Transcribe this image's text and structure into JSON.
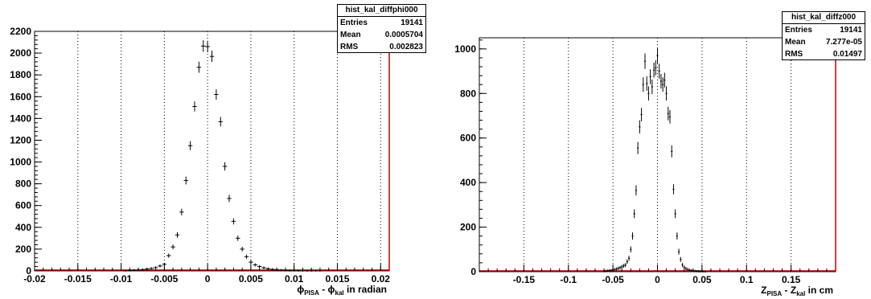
{
  "chart_data": [
    {
      "type": "histogram",
      "title": "",
      "xlabel": "ϕ_PISA - ϕ_kal in radian",
      "xlabel_parts": {
        "a": "ϕ",
        "a_sub": "PISA",
        "sep": " - ",
        "b": "ϕ",
        "b_sub": "kal",
        "tail": " in radian"
      },
      "xlim": [
        -0.02,
        0.021
      ],
      "ylim": [
        0,
        2200
      ],
      "xticks": [
        -0.02,
        -0.015,
        -0.01,
        -0.005,
        0,
        0.005,
        0.01,
        0.015,
        0.02
      ],
      "xtick_labels": [
        "-0.02",
        "-0.015",
        "-0.01",
        "-0.005",
        "0",
        "0.005",
        "0.01",
        "0.015",
        "0.02"
      ],
      "yticks": [
        0,
        200,
        400,
        600,
        800,
        1000,
        1200,
        1400,
        1600,
        1800,
        2000,
        2200
      ],
      "ytick_labels": [
        "0",
        "200",
        "400",
        "600",
        "800",
        "1000",
        "1200",
        "1400",
        "1600",
        "1800",
        "2000",
        "2200"
      ],
      "grid": "vertical dotted",
      "bin_width": 0.0005,
      "x": [
        -0.0095,
        -0.009,
        -0.0085,
        -0.008,
        -0.0075,
        -0.007,
        -0.0065,
        -0.006,
        -0.0055,
        -0.005,
        -0.0045,
        -0.004,
        -0.0035,
        -0.003,
        -0.0025,
        -0.002,
        -0.0015,
        -0.001,
        -0.0005,
        0.0,
        0.0005,
        0.001,
        0.0015,
        0.002,
        0.0025,
        0.003,
        0.0035,
        0.004,
        0.0045,
        0.005,
        0.0055,
        0.006,
        0.0065,
        0.007,
        0.0075,
        0.008,
        0.0085,
        0.009,
        0.0095,
        0.01,
        0.0105,
        0.011,
        0.0115,
        0.012,
        0.0125,
        0.013
      ],
      "y": [
        2,
        4,
        6,
        8,
        12,
        16,
        22,
        30,
        45,
        60,
        140,
        220,
        330,
        540,
        830,
        1150,
        1510,
        1870,
        2065,
        2060,
        1970,
        1620,
        1370,
        960,
        665,
        455,
        300,
        200,
        130,
        80,
        55,
        40,
        28,
        20,
        14,
        10,
        7,
        5,
        3,
        2,
        2,
        1,
        1,
        1,
        1,
        0
      ],
      "stats": {
        "name": "hist_kal_diffphi000",
        "entries_label": "Entries",
        "entries": "19141",
        "mean_label": "Mean",
        "mean": "0.0005704",
        "rms_label": "RMS",
        "rms": "0.002823"
      },
      "colors": {
        "frame": "#000000",
        "marker": "#000000",
        "edge": "#c00000"
      }
    },
    {
      "type": "histogram",
      "title": "",
      "xlabel": "Z_PISA - Z_kal in cm",
      "xlabel_parts": {
        "a": "Z",
        "a_sub": "PISA",
        "sep": " - ",
        "b": "Z",
        "b_sub": "kal",
        "tail": " in cm"
      },
      "xlim": [
        -0.2,
        0.2
      ],
      "ylim": [
        0,
        1050
      ],
      "xticks": [
        -0.15,
        -0.1,
        -0.05,
        0,
        0.05,
        0.1,
        0.15
      ],
      "xtick_labels": [
        "-0.15",
        "-0.1",
        "-0.05",
        "0",
        "0.05",
        "0.1",
        "0.15"
      ],
      "yticks": [
        0,
        200,
        400,
        600,
        800,
        1000
      ],
      "ytick_labels": [
        "0",
        "200",
        "400",
        "600",
        "800",
        "1000"
      ],
      "grid": "vertical dotted",
      "bin_width": 0.002,
      "x": [
        -0.06,
        -0.058,
        -0.056,
        -0.054,
        -0.052,
        -0.05,
        -0.048,
        -0.046,
        -0.044,
        -0.042,
        -0.04,
        -0.038,
        -0.036,
        -0.034,
        -0.032,
        -0.03,
        -0.028,
        -0.026,
        -0.024,
        -0.022,
        -0.02,
        -0.018,
        -0.016,
        -0.014,
        -0.012,
        -0.01,
        -0.008,
        -0.006,
        -0.004,
        -0.002,
        0.0,
        0.002,
        0.004,
        0.006,
        0.008,
        0.01,
        0.012,
        0.014,
        0.016,
        0.018,
        0.02,
        0.022,
        0.024,
        0.026,
        0.028,
        0.03,
        0.032,
        0.034,
        0.036,
        0.038,
        0.04,
        0.042,
        0.044,
        0.046,
        0.048,
        0.05,
        0.052,
        0.054
      ],
      "y": [
        2,
        3,
        4,
        5,
        6,
        8,
        10,
        12,
        15,
        18,
        22,
        26,
        30,
        45,
        60,
        100,
        160,
        260,
        365,
        555,
        650,
        705,
        840,
        945,
        845,
        800,
        875,
        830,
        905,
        915,
        970,
        900,
        855,
        840,
        860,
        800,
        710,
        695,
        540,
        370,
        260,
        160,
        90,
        55,
        30,
        20,
        14,
        10,
        7,
        5,
        4,
        3,
        2,
        2,
        1,
        1,
        1,
        0
      ],
      "stats": {
        "name": "hist_kal_diffz000",
        "entries_label": "Entries",
        "entries": "19141",
        "mean_label": "Mean",
        "mean": "7.277e-05",
        "rms_label": "RMS",
        "rms": "0.01497"
      },
      "colors": {
        "frame": "#000000",
        "marker": "#000000",
        "edge": "#c00000"
      }
    }
  ]
}
